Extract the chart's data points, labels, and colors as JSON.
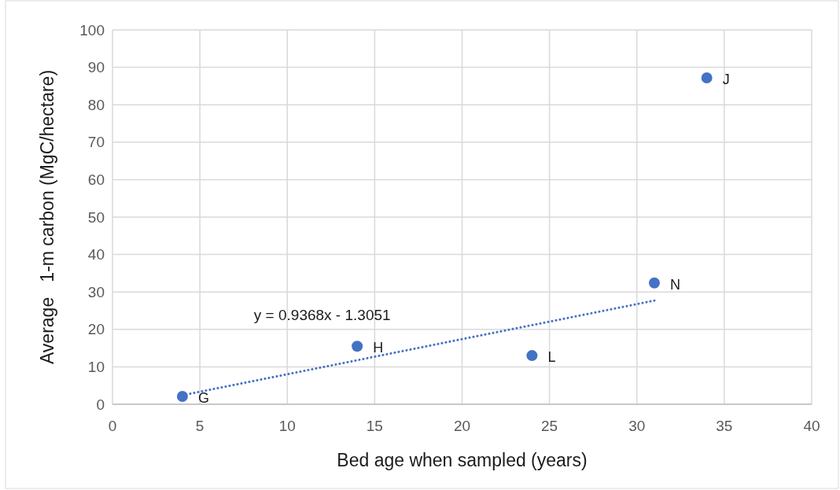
{
  "chart_data": {
    "type": "scatter",
    "xlabel": "Bed age when sampled (years)",
    "ylabel": "Average   1-m carbon (MgC/hectare)",
    "xlim": [
      0,
      40
    ],
    "xticks": [
      0,
      5,
      10,
      15,
      20,
      25,
      30,
      35,
      40
    ],
    "ylim": [
      0,
      100
    ],
    "yticks": [
      0,
      10,
      20,
      30,
      40,
      50,
      60,
      70,
      80,
      90,
      100
    ],
    "grid": true,
    "marker": "circle",
    "series": [
      {
        "color": "#4472c4",
        "x": [
          4,
          14,
          24,
          31
        ],
        "values": [
          2.1,
          15.5,
          13.0,
          32.4
        ]
      },
      {
        "color": "#4472c4",
        "x": [
          34
        ],
        "values": [
          87.2
        ]
      },
      {
        "type": "line",
        "color": "#4472c4",
        "x": [
          4,
          31
        ],
        "values": [
          2.4,
          27.7
        ],
        "line_style": "dotted",
        "marker": "none"
      }
    ],
    "annotations": [
      {
        "text": "G",
        "x": 4,
        "y": 2.1
      },
      {
        "text": "H",
        "x": 14,
        "y": 15.5
      },
      {
        "text": "L",
        "x": 24,
        "y": 13.0
      },
      {
        "text": "N",
        "x": 31,
        "y": 32.4
      },
      {
        "text": "J",
        "x": 34,
        "y": 87.2
      },
      "y = 0.9368x - 1.3051"
    ]
  }
}
